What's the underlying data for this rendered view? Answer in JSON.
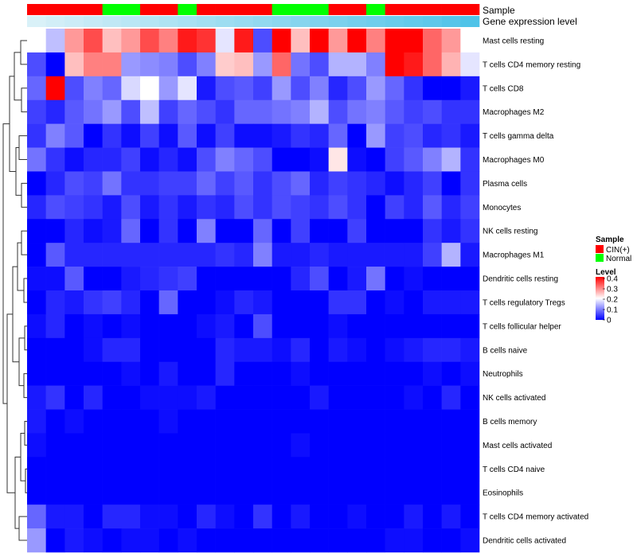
{
  "chart_data": {
    "type": "heatmap",
    "title": "",
    "annotation_rows": [
      "Sample",
      "Gene expression level"
    ],
    "row_labels": [
      "Mast cells resting",
      "T cells CD4 memory resting",
      "T cells CD8",
      "Macrophages M2",
      "T cells gamma delta",
      "Macrophages M0",
      "Plasma cells",
      "Monocytes",
      "NK cells resting",
      "Macrophages M1",
      "Dendritic cells resting",
      "T cells regulatory  Tregs",
      "T cells follicular helper",
      "B cells naive",
      "Neutrophils",
      "NK cells activated",
      "B cells memory",
      "Mast cells activated",
      "T cells CD4 naive",
      "Eosinophils",
      "T cells CD4 memory activated",
      "Dendritic cells activated"
    ],
    "column_sample": [
      "CIN(+)",
      "CIN(+)",
      "CIN(+)",
      "CIN(+)",
      "Normal",
      "Normal",
      "CIN(+)",
      "CIN(+)",
      "Normal",
      "CIN(+)",
      "CIN(+)",
      "CIN(+)",
      "CIN(+)",
      "Normal",
      "Normal",
      "Normal",
      "CIN(+)",
      "CIN(+)",
      "Normal",
      "CIN(+)",
      "CIN(+)",
      "CIN(+)",
      "CIN(+)",
      "CIN(+)"
    ],
    "column_expression_level": [
      0.05,
      0.1,
      0.14,
      0.18,
      0.22,
      0.26,
      0.3,
      0.34,
      0.38,
      0.42,
      0.46,
      0.5,
      0.54,
      0.58,
      0.62,
      0.66,
      0.7,
      0.74,
      0.78,
      0.82,
      0.86,
      0.9,
      0.95,
      1.0
    ],
    "values": [
      [
        0.2,
        0.15,
        0.28,
        0.34,
        0.25,
        0.28,
        0.34,
        0.3,
        0.38,
        0.36,
        0.18,
        0.38,
        0.06,
        0.4,
        0.25,
        0.4,
        0.28,
        0.4,
        0.3,
        0.4,
        0.4,
        0.32,
        0.28,
        0.2
      ],
      [
        0.06,
        0.0,
        0.25,
        0.3,
        0.3,
        0.12,
        0.11,
        0.1,
        0.06,
        0.1,
        0.24,
        0.25,
        0.12,
        0.32,
        0.09,
        0.06,
        0.14,
        0.14,
        0.1,
        0.4,
        0.38,
        0.32,
        0.26,
        0.18
      ],
      [
        0.08,
        0.4,
        0.06,
        0.1,
        0.08,
        0.17,
        0.2,
        0.12,
        0.18,
        0.02,
        0.06,
        0.07,
        0.05,
        0.12,
        0.06,
        0.1,
        0.03,
        0.06,
        0.12,
        0.08,
        0.04,
        0.0,
        0.0,
        0.02
      ],
      [
        0.05,
        0.03,
        0.07,
        0.09,
        0.12,
        0.06,
        0.15,
        0.05,
        0.08,
        0.06,
        0.04,
        0.08,
        0.08,
        0.09,
        0.1,
        0.14,
        0.06,
        0.09,
        0.1,
        0.07,
        0.05,
        0.06,
        0.04,
        0.04
      ],
      [
        0.04,
        0.1,
        0.07,
        0.0,
        0.04,
        0.01,
        0.05,
        0.01,
        0.07,
        0.01,
        0.05,
        0.01,
        0.01,
        0.02,
        0.04,
        0.03,
        0.08,
        0.0,
        0.12,
        0.05,
        0.06,
        0.03,
        0.04,
        0.02
      ],
      [
        0.09,
        0.04,
        0.01,
        0.03,
        0.03,
        0.05,
        0.01,
        0.03,
        0.01,
        0.06,
        0.1,
        0.08,
        0.06,
        0.0,
        0.0,
        0.01,
        0.22,
        0.01,
        0.0,
        0.05,
        0.07,
        0.1,
        0.14,
        0.04
      ],
      [
        0.0,
        0.03,
        0.06,
        0.05,
        0.09,
        0.04,
        0.04,
        0.05,
        0.05,
        0.08,
        0.05,
        0.07,
        0.04,
        0.06,
        0.08,
        0.03,
        0.05,
        0.04,
        0.03,
        0.01,
        0.03,
        0.05,
        0.0,
        0.04
      ],
      [
        0.03,
        0.06,
        0.05,
        0.04,
        0.02,
        0.06,
        0.02,
        0.04,
        0.02,
        0.04,
        0.03,
        0.06,
        0.04,
        0.06,
        0.05,
        0.04,
        0.06,
        0.04,
        0.0,
        0.05,
        0.03,
        0.07,
        0.03,
        0.05
      ],
      [
        0.0,
        0.0,
        0.03,
        0.01,
        0.02,
        0.08,
        0.0,
        0.04,
        0.0,
        0.1,
        0.0,
        0.0,
        0.08,
        0.0,
        0.05,
        0.0,
        0.0,
        0.05,
        0.0,
        0.0,
        0.0,
        0.04,
        0.02,
        0.04
      ],
      [
        0.0,
        0.07,
        0.03,
        0.03,
        0.03,
        0.03,
        0.03,
        0.03,
        0.03,
        0.03,
        0.04,
        0.03,
        0.1,
        0.02,
        0.02,
        0.03,
        0.02,
        0.02,
        0.02,
        0.02,
        0.02,
        0.05,
        0.14,
        0.02
      ],
      [
        0.01,
        0.01,
        0.07,
        0.0,
        0.0,
        0.02,
        0.03,
        0.04,
        0.05,
        0.0,
        0.0,
        0.0,
        0.0,
        0.0,
        0.03,
        0.06,
        0.0,
        0.02,
        0.09,
        0.0,
        0.01,
        0.0,
        0.0,
        0.0
      ],
      [
        0.0,
        0.03,
        0.02,
        0.04,
        0.05,
        0.03,
        0.0,
        0.08,
        0.0,
        0.0,
        0.01,
        0.03,
        0.02,
        0.0,
        0.0,
        0.0,
        0.04,
        0.04,
        0.0,
        0.01,
        0.0,
        0.02,
        0.02,
        0.02
      ],
      [
        0.01,
        0.03,
        0.0,
        0.01,
        0.0,
        0.01,
        0.0,
        0.0,
        0.0,
        0.01,
        0.02,
        0.0,
        0.06,
        0.0,
        0.0,
        0.0,
        0.01,
        0.0,
        0.0,
        0.0,
        0.0,
        0.0,
        0.0,
        0.0
      ],
      [
        0.0,
        0.0,
        0.0,
        0.01,
        0.03,
        0.03,
        0.0,
        0.0,
        0.0,
        0.0,
        0.03,
        0.02,
        0.02,
        0.01,
        0.03,
        0.0,
        0.02,
        0.01,
        0.0,
        0.01,
        0.02,
        0.03,
        0.03,
        0.02
      ],
      [
        0.0,
        0.0,
        0.0,
        0.0,
        0.0,
        0.01,
        0.0,
        0.02,
        0.0,
        0.0,
        0.03,
        0.0,
        0.0,
        0.0,
        0.01,
        0.0,
        0.0,
        0.0,
        0.0,
        0.0,
        0.0,
        0.01,
        0.0,
        0.01
      ],
      [
        0.02,
        0.04,
        0.0,
        0.03,
        0.0,
        0.0,
        0.01,
        0.01,
        0.01,
        0.02,
        0.0,
        0.0,
        0.0,
        0.0,
        0.0,
        0.02,
        0.0,
        0.0,
        0.0,
        0.0,
        0.01,
        0.0,
        0.03,
        0.0
      ],
      [
        0.02,
        0.0,
        0.01,
        0.0,
        0.0,
        0.0,
        0.0,
        0.01,
        0.0,
        0.0,
        0.0,
        0.0,
        0.0,
        0.0,
        0.0,
        0.0,
        0.0,
        0.0,
        0.0,
        0.0,
        0.0,
        0.0,
        0.0,
        0.0
      ],
      [
        0.01,
        0.0,
        0.0,
        0.0,
        0.0,
        0.0,
        0.0,
        0.0,
        0.0,
        0.0,
        0.0,
        0.0,
        0.0,
        0.0,
        0.01,
        0.0,
        0.0,
        0.0,
        0.0,
        0.0,
        0.0,
        0.0,
        0.0,
        0.0
      ],
      [
        0.0,
        0.0,
        0.0,
        0.0,
        0.0,
        0.0,
        0.0,
        0.0,
        0.0,
        0.0,
        0.0,
        0.0,
        0.0,
        0.0,
        0.0,
        0.0,
        0.0,
        0.0,
        0.0,
        0.0,
        0.0,
        0.0,
        0.0,
        0.0
      ],
      [
        0.0,
        0.0,
        0.0,
        0.0,
        0.0,
        0.0,
        0.0,
        0.0,
        0.0,
        0.0,
        0.0,
        0.0,
        0.0,
        0.0,
        0.0,
        0.0,
        0.0,
        0.0,
        0.0,
        0.0,
        0.0,
        0.0,
        0.0,
        0.0
      ],
      [
        0.08,
        0.02,
        0.02,
        0.0,
        0.03,
        0.03,
        0.01,
        0.01,
        0.0,
        0.03,
        0.01,
        0.0,
        0.04,
        0.0,
        0.02,
        0.0,
        0.0,
        0.01,
        0.0,
        0.0,
        0.02,
        0.0,
        0.02,
        0.0
      ],
      [
        0.12,
        0.0,
        0.02,
        0.01,
        0.0,
        0.01,
        0.01,
        0.0,
        0.01,
        0.0,
        0.0,
        0.0,
        0.0,
        0.0,
        0.0,
        0.0,
        0.0,
        0.0,
        0.0,
        0.01,
        0.01,
        0.0,
        0.0,
        0.01
      ]
    ],
    "color_scale": {
      "min": 0,
      "mid": 0.2,
      "max": 0.4,
      "low_color": "#0000ff",
      "mid_color": "#ffffff",
      "high_color": "#ff0000"
    },
    "legend": {
      "sample_title": "Sample",
      "sample_items": [
        {
          "label": "CIN(+)",
          "color": "#ff0000"
        },
        {
          "label": "Normal",
          "color": "#00ff00"
        }
      ],
      "level_title": "Level",
      "level_ticks": [
        0.4,
        0.3,
        0.2,
        0.1,
        0
      ],
      "placement": "right"
    },
    "expression_colors": {
      "low": "#e0f3f9",
      "high": "#4fc3e8"
    }
  }
}
